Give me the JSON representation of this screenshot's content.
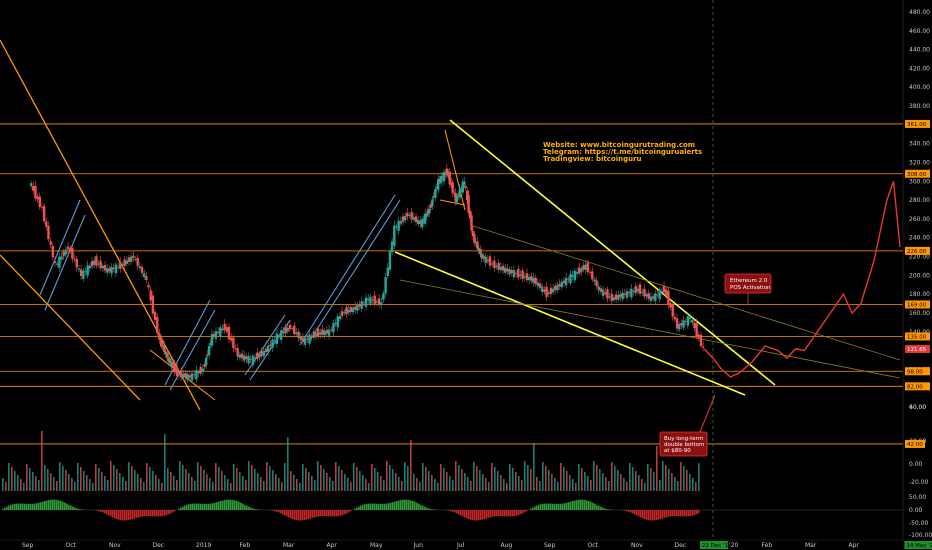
{
  "chart_data": {
    "type": "line",
    "subtype": "candlestick",
    "instrument_note": "ETH price chart with trendlines, volume and oscillator panes",
    "grid": false,
    "colors": {
      "background": "#000000",
      "up": "#26a69a",
      "down": "#ef5350",
      "horizontal_levels": "#ff9800",
      "wedge_lines": "#ffff33",
      "channel_lines": "#5b9bd5",
      "projection": "#e53935",
      "current_price_tag": "#e53935",
      "vline": "#2e7d32",
      "info_text": "#ffb000"
    },
    "price_axis": {
      "ticks": [
        "480.00",
        "460.00",
        "440.00",
        "420.00",
        "400.00",
        "380.00",
        "360.00",
        "340.00",
        "320.00",
        "300.00",
        "280.00",
        "260.00",
        "240.00",
        "220.00",
        "200.00",
        "180.00",
        "160.00",
        "140.00",
        "120.00",
        "100.00",
        "80.00",
        "60.00"
      ],
      "ylim": [
        50,
        490
      ]
    },
    "volume_axis": {
      "ticks": [
        "40.00",
        "20.00",
        "0.00",
        "-20.00"
      ]
    },
    "oscillator_axis": {
      "ticks": [
        "50.00",
        "0.00",
        "-50.00",
        "-100.00"
      ]
    },
    "x_labels": [
      "Sep",
      "Oct",
      "Nov",
      "Dec",
      "2019",
      "Feb",
      "Mar",
      "Apr",
      "May",
      "Jun",
      "Jul",
      "Aug",
      "Sep",
      "Oct",
      "Nov",
      "Dec",
      "Jan '20",
      "Feb",
      "Mar",
      "Apr"
    ],
    "x_label_positions_month_index": [
      0,
      1,
      2,
      3,
      4,
      5,
      6,
      7,
      8,
      9,
      10,
      11,
      12,
      13,
      14,
      15,
      16,
      17,
      18,
      19
    ],
    "date_tags": [
      "21 Dec '19",
      "14 May '20"
    ],
    "date_tag_month_index": [
      15.7,
      20.4
    ],
    "horizontal_levels": [
      361,
      308,
      226,
      169,
      135,
      98,
      82
    ],
    "level_tags": [
      "361.00",
      "308.00",
      "226.00",
      "169.00",
      "135.00",
      "98.00",
      "82.00"
    ],
    "support_level_tag_extra": "42.00",
    "support_level_extra": 42,
    "current_price": {
      "value": 121.65,
      "label": "121.65"
    },
    "close_series": {
      "month_index": [
        0,
        0.3,
        0.6,
        0.9,
        1.2,
        1.5,
        1.8,
        2.1,
        2.4,
        2.7,
        3.0,
        3.2,
        3.4,
        3.7,
        4.0,
        4.2,
        4.5,
        4.8,
        5.1,
        5.4,
        5.7,
        6.0,
        6.3,
        6.6,
        6.9,
        7.2,
        7.5,
        7.8,
        8.1,
        8.4,
        8.7,
        9.0,
        9.2,
        9.4,
        9.6,
        9.8,
        10.0,
        10.2,
        10.4,
        10.7,
        11.0,
        11.3,
        11.6,
        11.9,
        12.2,
        12.5,
        12.8,
        13.1,
        13.4,
        13.7,
        14.0,
        14.3,
        14.6,
        14.9,
        15.2,
        15.5
      ],
      "close": [
        300,
        270,
        210,
        230,
        200,
        215,
        205,
        210,
        220,
        195,
        130,
        110,
        95,
        92,
        100,
        135,
        145,
        115,
        110,
        118,
        135,
        145,
        130,
        138,
        140,
        160,
        165,
        175,
        170,
        250,
        265,
        255,
        270,
        300,
        310,
        280,
        300,
        240,
        220,
        210,
        205,
        200,
        195,
        180,
        190,
        200,
        210,
        185,
        175,
        180,
        185,
        175,
        185,
        145,
        155,
        121.65
      ]
    },
    "projection": {
      "label": "projection",
      "month_index": [
        15.5,
        15.7,
        15.9,
        16.1,
        16.3,
        16.6,
        16.9,
        17.2,
        17.4,
        17.6,
        17.8,
        18.1,
        18.4,
        18.7,
        18.9,
        19.1,
        19.4,
        19.7,
        19.85,
        20.0
      ],
      "value": [
        121.65,
        112,
        100,
        92,
        96,
        108,
        125,
        120,
        112,
        122,
        120,
        140,
        160,
        180,
        160,
        170,
        215,
        280,
        300,
        230
      ]
    },
    "annotations": [
      {
        "text": "Website: www.bitcoingurutrading.com",
        "kind": "info"
      },
      {
        "text": "Telegram: https://t.me/bitcoingurualerts",
        "kind": "info"
      },
      {
        "text": "Tradingview: bitcoinguru",
        "kind": "info"
      },
      {
        "text": "Ethereum 2.0",
        "kind": "callout"
      },
      {
        "text": "POS Activation",
        "kind": "callout"
      },
      {
        "text": "Buy long-term",
        "kind": "callout"
      },
      {
        "text": "double bottom",
        "kind": "callout"
      },
      {
        "text": "at $80-90",
        "kind": "callout"
      }
    ]
  }
}
